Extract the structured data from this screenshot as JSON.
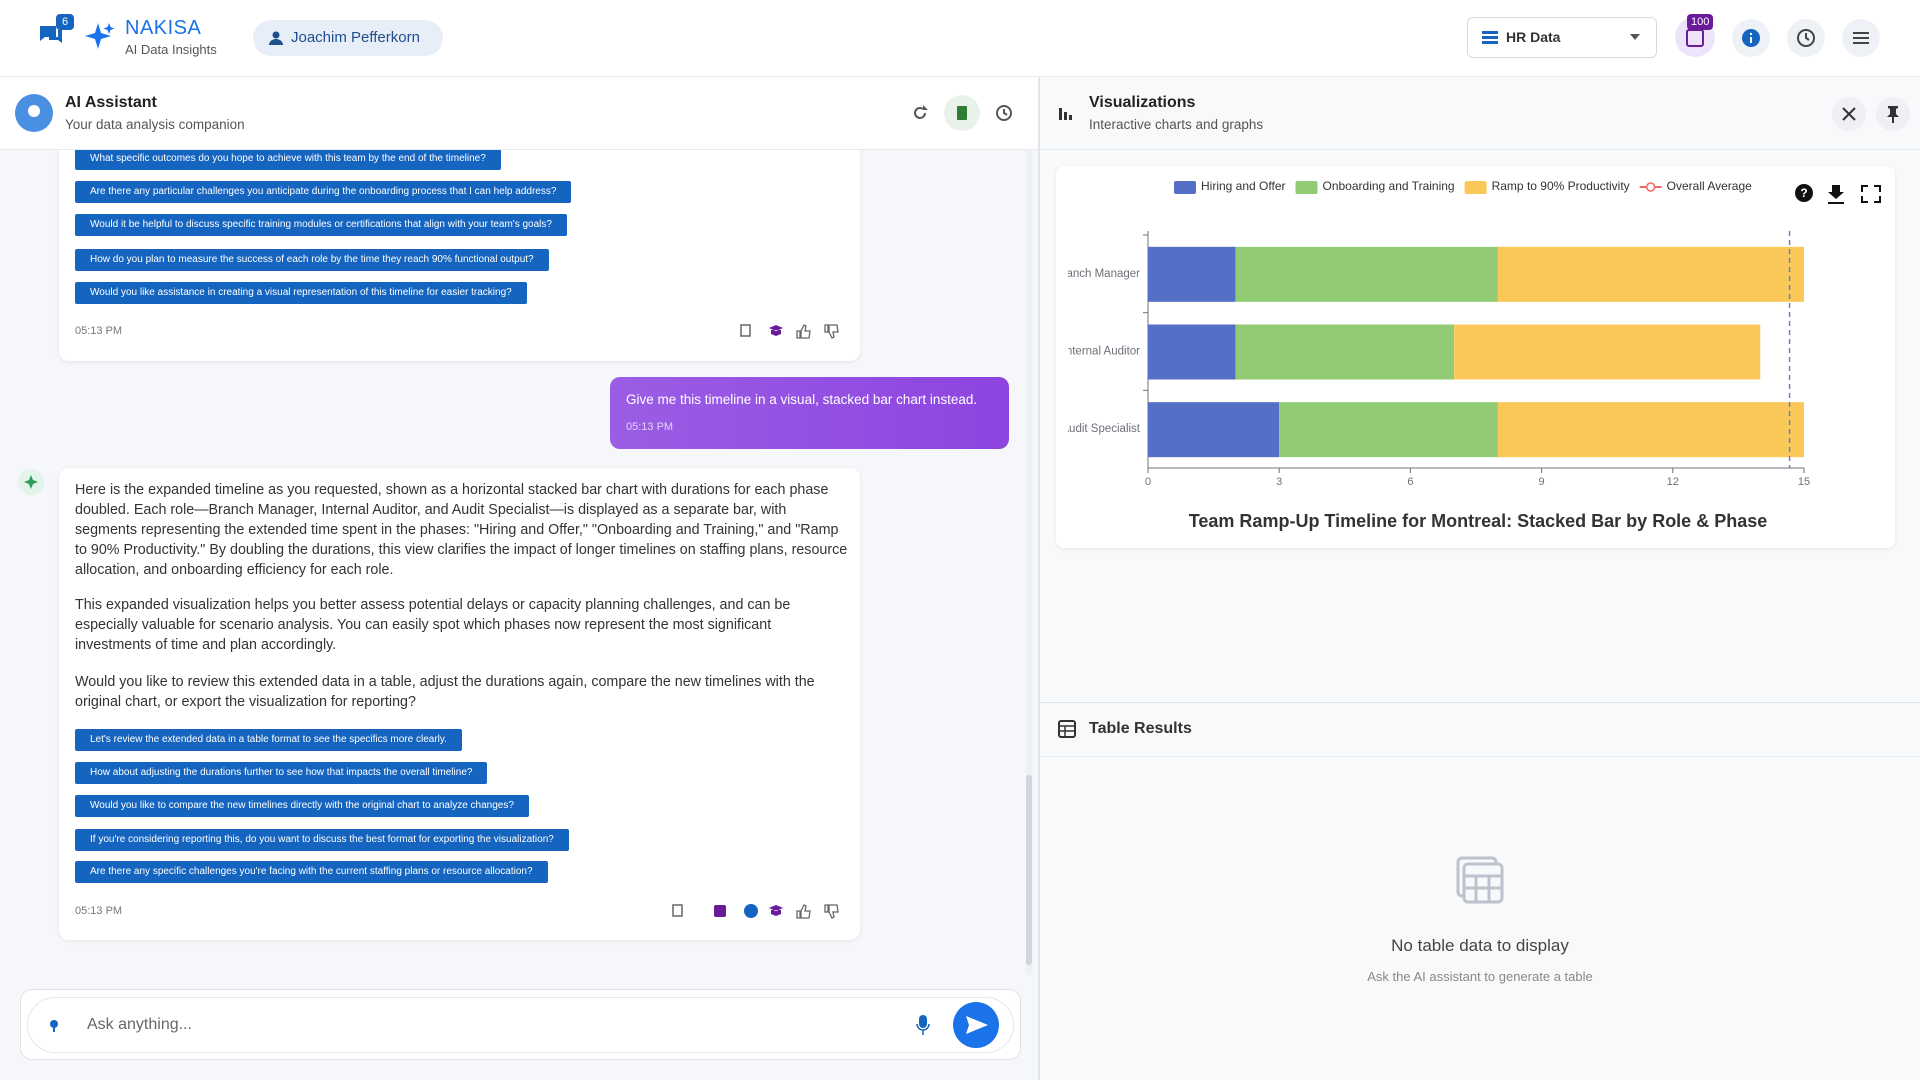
{
  "header": {
    "brand": "NAKISA",
    "brand_sub": "AI Data Insights",
    "user": "Joachim Pefferkorn",
    "chat_badge": "6",
    "dataset": "HR Data",
    "notif_badge": "100"
  },
  "chat": {
    "title": "AI Assistant",
    "subtitle": "Your data analysis companion",
    "messages": [
      {
        "suggestions": [
          "What specific outcomes do you hope to achieve with this team by the end of the timeline?",
          "Are there any particular challenges you anticipate during the onboarding process that I can help address?",
          "Would it be helpful to discuss specific training modules or certifications that align with your team's goals?",
          "How do you plan to measure the success of each role by the time they reach 90% functional output?",
          "Would you like assistance in creating a visual representation of this timeline for easier tracking?"
        ],
        "time": "05:13 PM"
      },
      {
        "text": "Give me this timeline in a visual, stacked bar chart instead.",
        "time": "05:13 PM"
      },
      {
        "paragraphs": [
          "Here is the expanded timeline as you requested, shown as a horizontal stacked bar chart with durations for each phase doubled. Each role—Branch Manager, Internal Auditor, and Audit Specialist—is displayed as a separate bar, with segments representing the extended time spent in the phases: \"Hiring and Offer,\" \"Onboarding and Training,\" and \"Ramp to 90% Productivity.\" By doubling the durations, this view clarifies the impact of longer timelines on staffing plans, resource allocation, and onboarding efficiency for each role.",
          "This expanded visualization helps you better assess potential delays or capacity planning challenges, and can be especially valuable for scenario analysis. You can easily spot which phases now represent the most significant investments of time and plan accordingly.",
          "Would you like to review this extended data in a table, adjust the durations again, compare the new timelines with the original chart, or export the visualization for reporting?"
        ],
        "suggestions": [
          "Let's review the extended data in a table format to see the specifics more clearly.",
          "How about adjusting the durations further to see how that impacts the overall timeline?",
          "Would you like to compare the new timelines directly with the original chart to analyze changes?",
          "If you're considering reporting this, do you want to discuss the best format for exporting the visualization?",
          "Are there any specific challenges you're facing with the current staffing plans or resource allocation?"
        ],
        "time": "05:13 PM"
      }
    ],
    "placeholder": "Ask anything..."
  },
  "viz": {
    "title": "Visualizations",
    "subtitle": "Interactive charts and graphs"
  },
  "chart_data": {
    "type": "stacked_barh",
    "title": "Team Ramp-Up Timeline for Montreal: Stacked Bar by Role & Phase",
    "categories": [
      "Branch Manager",
      "Internal Auditor",
      "Audit Specialist"
    ],
    "series": [
      {
        "name": "Hiring and Offer",
        "color": "#5470c6",
        "values": [
          2,
          2,
          3
        ]
      },
      {
        "name": "Onboarding and Training",
        "color": "#91cc75",
        "values": [
          6,
          5,
          5
        ]
      },
      {
        "name": "Ramp to 90% Productivity",
        "color": "#fac858",
        "values": [
          7,
          7,
          7
        ]
      }
    ],
    "average_line": {
      "name": "Overall Average",
      "color": "#ee6666",
      "value": 14.67
    },
    "xlim": [
      0,
      15
    ],
    "xticks": [
      0,
      3,
      6,
      9,
      12,
      15
    ],
    "grid": false
  },
  "table": {
    "title": "Table Results",
    "empty_title": "No table data to display",
    "empty_sub": "Ask the AI assistant to generate a table"
  }
}
